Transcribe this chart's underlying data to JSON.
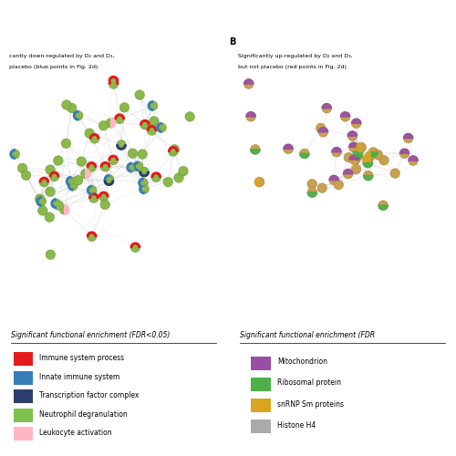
{
  "legend_A_title": "Significant functional enrichment (FDR<0.05)",
  "legend_A_items": [
    {
      "label": "Immune system process",
      "color": "#e41a1c"
    },
    {
      "label": "Innate immune system",
      "color": "#377eb8"
    },
    {
      "label": "Transcription factor complex",
      "color": "#2c3e6b"
    },
    {
      "label": "Neutrophil degranulation",
      "color": "#7fbf4d"
    },
    {
      "label": "Leukocyte activation",
      "color": "#ffb6c1"
    }
  ],
  "legend_B_title": "Significant functional enrichment (FDR",
  "legend_B_items": [
    {
      "label": "Mitochondrion",
      "color": "#984ea3"
    },
    {
      "label": "Ribosomal protein",
      "color": "#4daf4a"
    },
    {
      "label": "snRNP Sm proteins",
      "color": "#daa520"
    },
    {
      "label": "Histone H4",
      "color": "#aaaaaa"
    }
  ],
  "node_color_A": "#8ab84a",
  "node_color_A_edge": "#5a8a20",
  "node_color_B": "#c8a050",
  "node_color_B_edge": "#9a7030",
  "edge_color": "#cccccc",
  "background": "#ffffff",
  "fig_width": 5.0,
  "fig_height": 5.0
}
